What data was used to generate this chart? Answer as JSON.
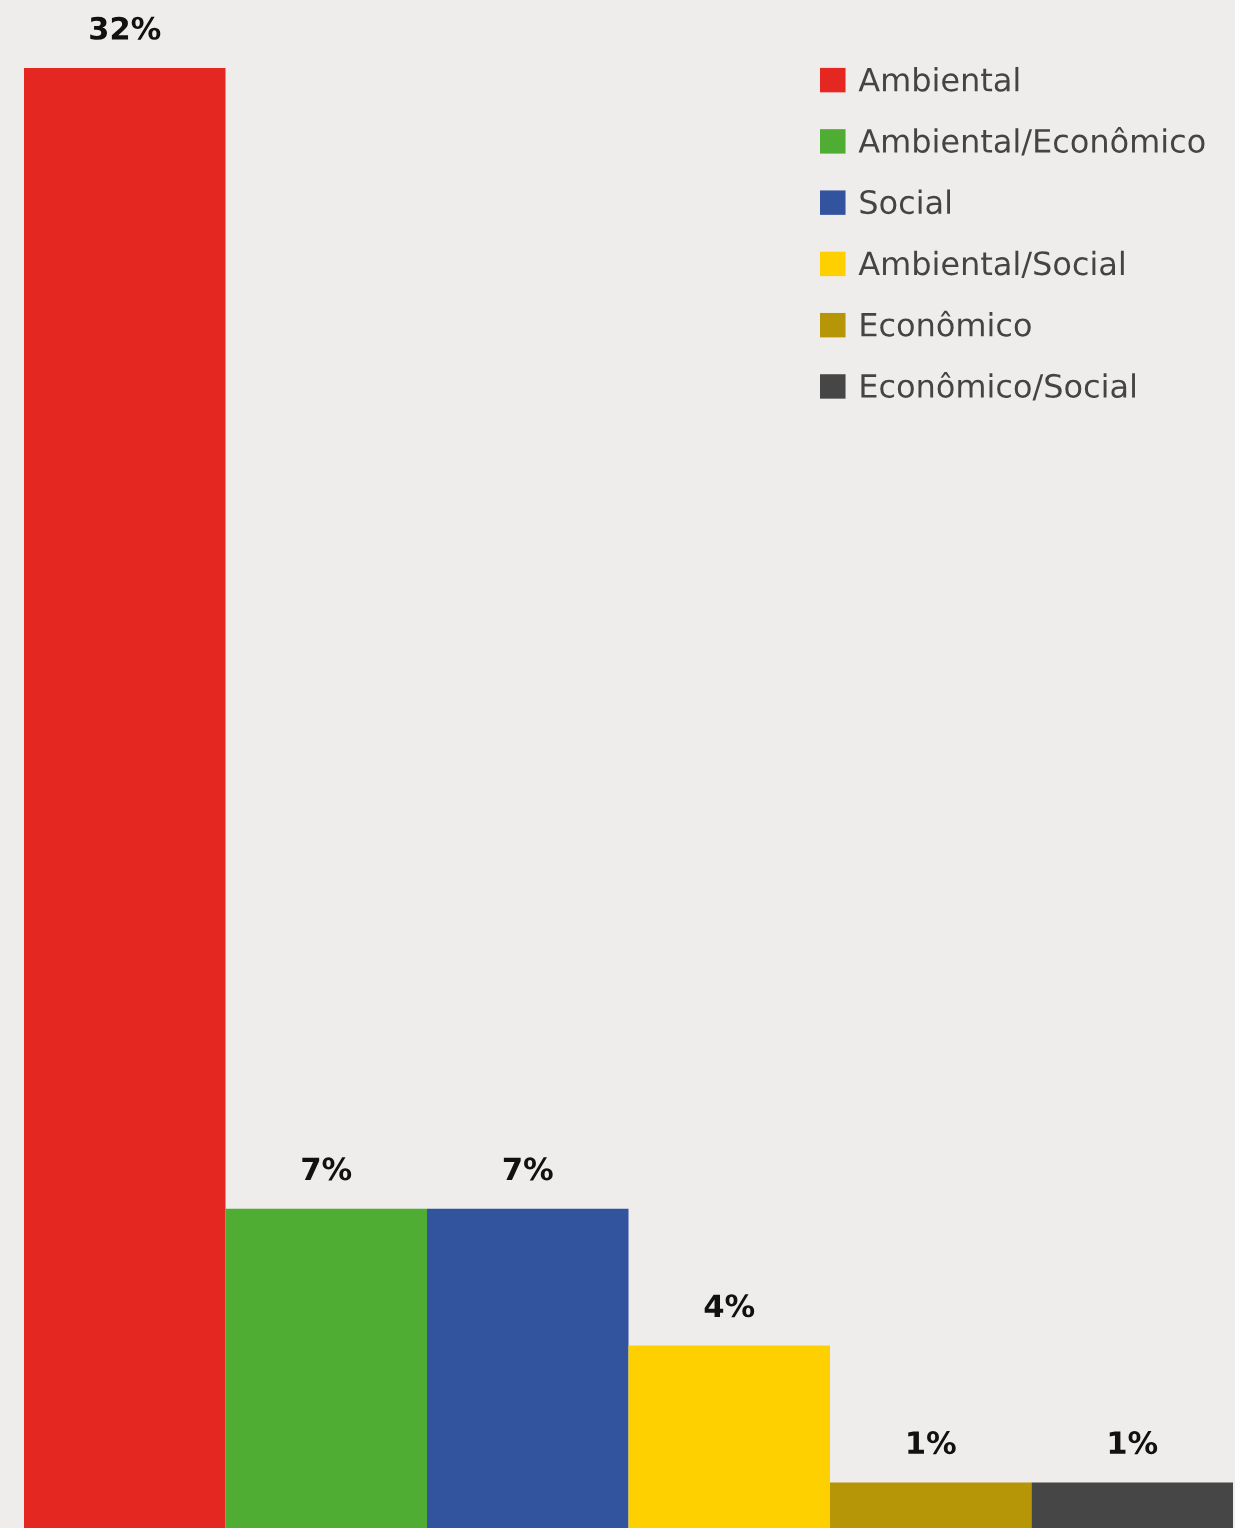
{
  "chart_data": {
    "type": "bar",
    "stacked": true,
    "categories": [
      null,
      null,
      null,
      null,
      null,
      null
    ],
    "series": [
      {
        "name": "Ambiental",
        "color": "#e52722",
        "values": [
          32,
          0,
          0,
          0,
          0,
          0
        ],
        "value_labels": [
          "32%",
          null,
          null,
          null,
          null,
          null
        ]
      },
      {
        "name": "Ambiental/Econômico",
        "color": "#4fad33",
        "values": [
          0,
          7,
          0,
          0,
          0,
          0
        ],
        "value_labels": [
          null,
          "7%",
          null,
          null,
          null,
          null
        ]
      },
      {
        "name": "Social",
        "color": "#32539e",
        "values": [
          0,
          0,
          7,
          0,
          0,
          0
        ],
        "value_labels": [
          null,
          null,
          "7%",
          null,
          null,
          null
        ]
      },
      {
        "name": "Ambiental/Social",
        "color": "#ffd000",
        "values": [
          0,
          0,
          0,
          4,
          0,
          0
        ],
        "value_labels": [
          null,
          null,
          null,
          "4%",
          null,
          null
        ]
      },
      {
        "name": "Econômico",
        "color": "#b69507",
        "values": [
          0,
          0,
          0,
          0,
          1,
          0
        ],
        "value_labels": [
          null,
          null,
          null,
          null,
          "1%",
          null
        ]
      },
      {
        "name": "Econômico/Social",
        "color": "#464646",
        "values": [
          0,
          0,
          0,
          0,
          0,
          1
        ],
        "value_labels": [
          null,
          null,
          null,
          null,
          null,
          "1%"
        ]
      }
    ],
    "legend": "top right"
  }
}
